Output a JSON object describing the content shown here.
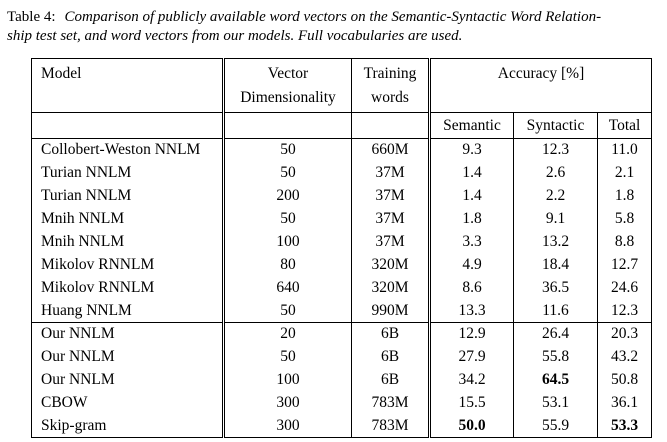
{
  "page": {
    "background": "#ffffff",
    "text_color": "#000000"
  },
  "caption": {
    "label": "Table 4:",
    "line1_italic": "Comparison of publicly available word vectors on the Semantic-Syntactic Word Relation-",
    "line2_italic": "ship test set, and word vectors from our models. Full vocabularies are used."
  },
  "table": {
    "header": {
      "model": "Model",
      "vector_line1": "Vector",
      "vector_line2": "Dimensionality",
      "training_line1": "Training",
      "training_line2": "words",
      "accuracy_group": "Accuracy [%]",
      "sub": [
        "Semantic",
        "Syntactic",
        "Total"
      ]
    },
    "sections": [
      {
        "name": "public-models",
        "rows": [
          {
            "cells": [
              "Collobert-Weston NNLM",
              "50",
              "660M",
              "9.3",
              "12.3",
              "11.0"
            ]
          },
          {
            "cells": [
              "Turian NNLM",
              "50",
              "37M",
              "1.4",
              "2.6",
              "2.1"
            ]
          },
          {
            "cells": [
              "Turian NNLM",
              "200",
              "37M",
              "1.4",
              "2.2",
              "1.8"
            ]
          },
          {
            "cells": [
              "Mnih NNLM",
              "50",
              "37M",
              "1.8",
              "9.1",
              "5.8"
            ]
          },
          {
            "cells": [
              "Mnih NNLM",
              "100",
              "37M",
              "3.3",
              "13.2",
              "8.8"
            ]
          },
          {
            "cells": [
              "Mikolov RNNLM",
              "80",
              "320M",
              "4.9",
              "18.4",
              "12.7"
            ]
          },
          {
            "cells": [
              "Mikolov RNNLM",
              "640",
              "320M",
              "8.6",
              "36.5",
              "24.6"
            ]
          },
          {
            "cells": [
              "Huang NNLM",
              "50",
              "990M",
              "13.3",
              "11.6",
              "12.3"
            ]
          }
        ]
      },
      {
        "name": "our-models",
        "rows": [
          {
            "cells": [
              "Our NNLM",
              "20",
              "6B",
              "12.9",
              "26.4",
              "20.3"
            ]
          },
          {
            "cells": [
              "Our NNLM",
              "50",
              "6B",
              "27.9",
              "55.8",
              "43.2"
            ]
          },
          {
            "cells": [
              "Our NNLM",
              "100",
              "6B",
              "34.2",
              "64.5",
              "50.8"
            ],
            "bold": [
              4
            ]
          },
          {
            "cells": [
              "CBOW",
              "300",
              "783M",
              "15.5",
              "53.1",
              "36.1"
            ]
          },
          {
            "cells": [
              "Skip-gram",
              "300",
              "783M",
              "50.0",
              "55.9",
              "53.3"
            ],
            "bold": [
              3,
              5
            ]
          }
        ]
      }
    ]
  },
  "chart_data": {
    "type": "table",
    "title": "Table 4: Comparison of publicly available word vectors on the Semantic-Syntactic Word Relationship test set, and word vectors from our models. Full vocabularies are used.",
    "columns": [
      "Model",
      "Vector Dimensionality",
      "Training words",
      "Accuracy [%] Semantic",
      "Accuracy [%] Syntactic",
      "Accuracy [%] Total"
    ],
    "rows": [
      [
        "Collobert-Weston NNLM",
        50,
        "660M",
        9.3,
        12.3,
        11.0
      ],
      [
        "Turian NNLM",
        50,
        "37M",
        1.4,
        2.6,
        2.1
      ],
      [
        "Turian NNLM",
        200,
        "37M",
        1.4,
        2.2,
        1.8
      ],
      [
        "Mnih NNLM",
        50,
        "37M",
        1.8,
        9.1,
        5.8
      ],
      [
        "Mnih NNLM",
        100,
        "37M",
        3.3,
        13.2,
        8.8
      ],
      [
        "Mikolov RNNLM",
        80,
        "320M",
        4.9,
        18.4,
        12.7
      ],
      [
        "Mikolov RNNLM",
        640,
        "320M",
        8.6,
        36.5,
        24.6
      ],
      [
        "Huang NNLM",
        50,
        "990M",
        13.3,
        11.6,
        12.3
      ],
      [
        "Our NNLM",
        20,
        "6B",
        12.9,
        26.4,
        20.3
      ],
      [
        "Our NNLM",
        50,
        "6B",
        27.9,
        55.8,
        43.2
      ],
      [
        "Our NNLM",
        100,
        "6B",
        34.2,
        64.5,
        50.8
      ],
      [
        "CBOW",
        300,
        "783M",
        15.5,
        53.1,
        36.1
      ],
      [
        "Skip-gram",
        300,
        "783M",
        50.0,
        55.9,
        53.3
      ]
    ],
    "bold_values": [
      "Our NNLM (100) Syntactic 64.5",
      "Skip-gram Semantic 50.0",
      "Skip-gram Total 53.3"
    ]
  }
}
